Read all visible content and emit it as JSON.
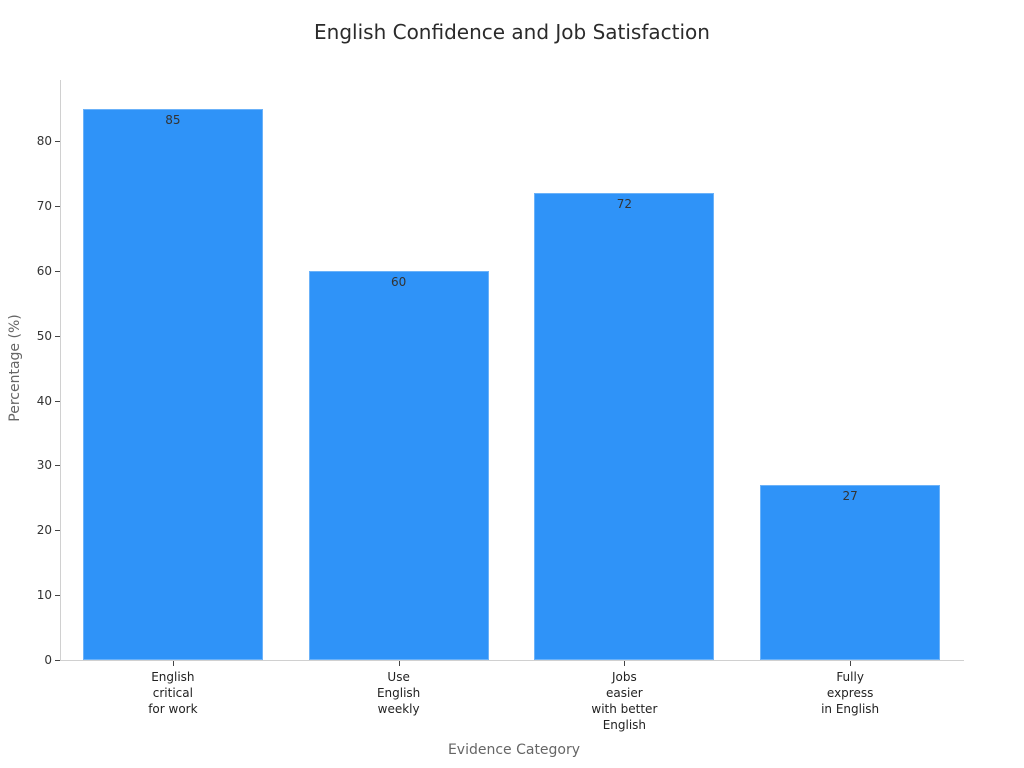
{
  "chart_data": {
    "type": "bar",
    "title": "English Confidence and Job Satisfaction",
    "xlabel": "Evidence Category",
    "ylabel": "Percentage (%)",
    "categories": [
      "English critical for work",
      "Use English weekly",
      "Jobs easier with better English",
      "Fully express in English"
    ],
    "category_labels": [
      "English\ncritical\nfor work",
      "Use\nEnglish\nweekly",
      "Jobs\neasier\nwith better\nEnglish",
      "Fully\nexpress\nin English"
    ],
    "values": [
      85,
      60,
      72,
      27
    ],
    "data_labels": [
      "85",
      "60",
      "72",
      "27"
    ],
    "ylim": [
      0,
      89
    ],
    "yticks": [
      0,
      10,
      20,
      30,
      40,
      50,
      60,
      70,
      80
    ],
    "ytick_labels": [
      "0",
      "10",
      "20",
      "30",
      "40",
      "50",
      "60",
      "70",
      "80"
    ],
    "grid": false,
    "legend": null,
    "bar_color": "#2f93f8"
  }
}
